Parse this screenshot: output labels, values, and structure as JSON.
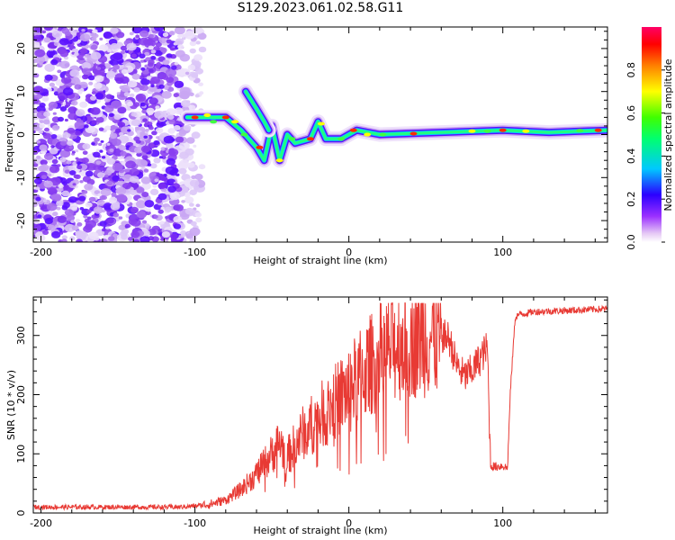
{
  "title": "S129.2023.061.02.58.G11",
  "colors": {
    "snr_line": "#e83a34",
    "spectrogram_colormap": "rainbow-white-purple-blue-cyan-green-yellow-red-magenta"
  },
  "chart_data": [
    {
      "type": "heatmap",
      "title": "S129.2023.061.02.58.G11",
      "xlabel": "Height of straight line (km)",
      "ylabel": "Frequency (Hz)",
      "xlim": [
        -205,
        168
      ],
      "ylim": [
        -25,
        25
      ],
      "x_ticks": [
        -200,
        -100,
        0,
        100
      ],
      "y_ticks": [
        -20,
        -10,
        0,
        10,
        20
      ],
      "colorbar": {
        "label": "Normalized spectral amplitude",
        "range": [
          0.0,
          1.0
        ],
        "ticks": [
          "0.0",
          "0.2",
          "0.4",
          "0.6",
          "0.8"
        ]
      },
      "ridge": {
        "description_points": [
          {
            "x": -105,
            "y": 4
          },
          {
            "x": -90,
            "y": 4
          },
          {
            "x": -80,
            "y": 4
          },
          {
            "x": -70,
            "y": 1
          },
          {
            "x": -60,
            "y": -3
          },
          {
            "x": -55,
            "y": -6
          },
          {
            "x": -50,
            "y": 2
          },
          {
            "x": -45,
            "y": -6
          },
          {
            "x": -40,
            "y": 0
          },
          {
            "x": -35,
            "y": -2
          },
          {
            "x": -25,
            "y": -1
          },
          {
            "x": -20,
            "y": 3
          },
          {
            "x": -15,
            "y": -1
          },
          {
            "x": -5,
            "y": -1
          },
          {
            "x": 5,
            "y": 1
          },
          {
            "x": 20,
            "y": 0
          },
          {
            "x": 60,
            "y": 0.5
          },
          {
            "x": 100,
            "y": 1
          },
          {
            "x": 130,
            "y": 0.5
          },
          {
            "x": 168,
            "y": 1
          }
        ],
        "upper_branch": [
          {
            "x": -67,
            "y": 10
          },
          {
            "x": -60,
            "y": 6
          },
          {
            "x": -55,
            "y": 3
          },
          {
            "x": -52,
            "y": 1
          }
        ]
      }
    },
    {
      "type": "line",
      "xlabel": "Height of straight line (km)",
      "ylabel": "SNR (10 * v/v)",
      "xlim": [
        -205,
        168
      ],
      "ylim": [
        0,
        365
      ],
      "x_ticks": [
        -200,
        -100,
        0,
        100
      ],
      "y_ticks": [
        0,
        100,
        200,
        300
      ],
      "series": [
        {
          "x": [
            -205,
            -150,
            -110,
            -100,
            -90,
            -80,
            -70,
            -60,
            -50,
            -45,
            -40,
            -30,
            -20,
            -10,
            0,
            10,
            20,
            30,
            40,
            50,
            60,
            65,
            70,
            75,
            80,
            85,
            90,
            92,
            95,
            100,
            103,
            105,
            108,
            110,
            120,
            140,
            168
          ],
          "y": [
            10,
            10,
            10,
            12,
            15,
            22,
            40,
            65,
            100,
            120,
            95,
            135,
            160,
            185,
            210,
            240,
            265,
            285,
            295,
            298,
            300,
            295,
            250,
            230,
            240,
            260,
            280,
            80,
            78,
            80,
            75,
            210,
            330,
            335,
            340,
            342,
            345
          ]
        }
      ]
    }
  ]
}
